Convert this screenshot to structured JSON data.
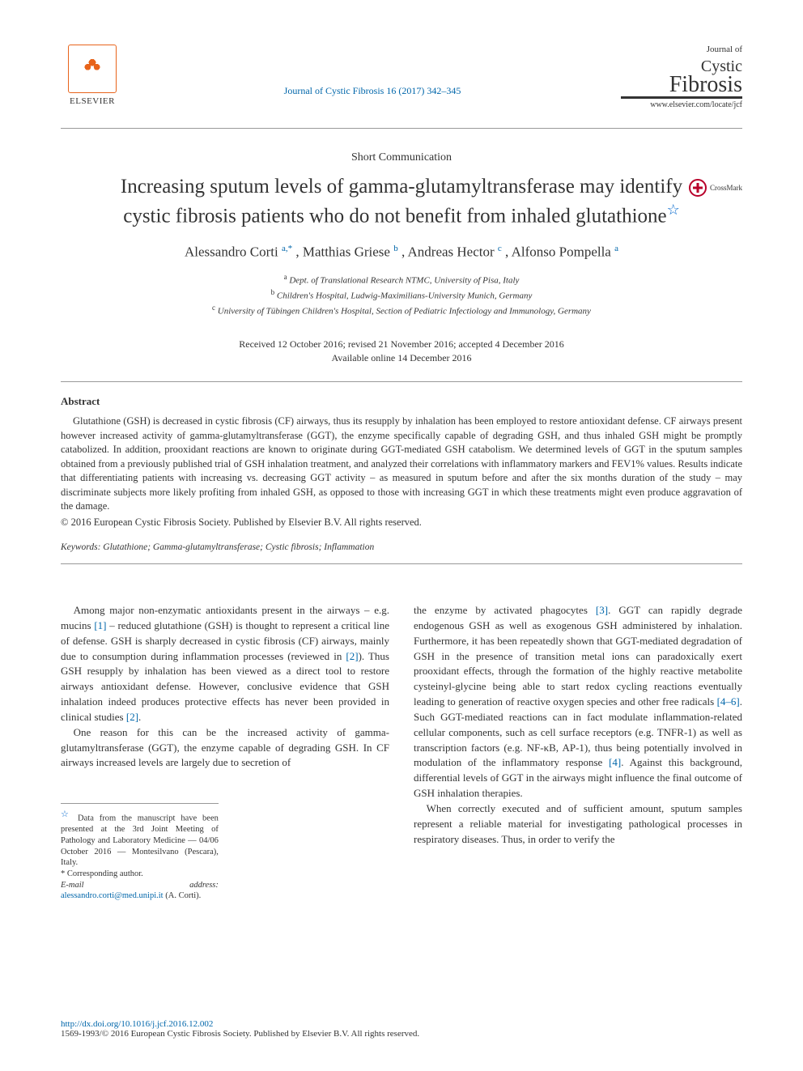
{
  "publisher": {
    "name": "ELSEVIER",
    "logo_color": "#e8641b"
  },
  "journal": {
    "reference": "Journal of Cystic Fibrosis 16 (2017) 342–345",
    "reference_color": "#0066aa",
    "logo_prefix": "Journal of",
    "logo_word1": "Cystic",
    "logo_word2": "Fibrosis",
    "url": "www.elsevier.com/locate/jcf"
  },
  "article": {
    "type": "Short Communication",
    "title": "Increasing sputum levels of gamma-glutamyltransferase may identify cystic fibrosis patients who do not benefit from inhaled glutathione",
    "title_fontsize": 25,
    "star_color": "#0066cc",
    "crossmark_label": "CrossMark",
    "crossmark_color": "#b8002a"
  },
  "authors": {
    "text": "Alessandro Corti",
    "a1_sup": "a,*",
    "a2": ", Matthias Griese",
    "a2_sup": "b",
    "a3": ", Andreas Hector",
    "a3_sup": "c",
    "a4": ", Alfonso Pompella",
    "a4_sup": "a"
  },
  "affiliations": [
    {
      "sup": "a",
      "text": "Dept. of Translational Research NTMC, University of Pisa, Italy"
    },
    {
      "sup": "b",
      "text": "Children's Hospital, Ludwig-Maximilians-University Munich, Germany"
    },
    {
      "sup": "c",
      "text": "University of Tübingen Children's Hospital, Section of Pediatric Infectiology and Immunology, Germany"
    }
  ],
  "dates": {
    "line1": "Received 12 October 2016; revised 21 November 2016; accepted 4 December 2016",
    "line2": "Available online 14 December 2016"
  },
  "abstract": {
    "heading": "Abstract",
    "text": "Glutathione (GSH) is decreased in cystic fibrosis (CF) airways, thus its resupply by inhalation has been employed to restore antioxidant defense. CF airways present however increased activity of gamma-glutamyltransferase (GGT), the enzyme specifically capable of degrading GSH, and thus inhaled GSH might be promptly catabolized. In addition, prooxidant reactions are known to originate during GGT-mediated GSH catabolism. We determined levels of GGT in the sputum samples obtained from a previously published trial of GSH inhalation treatment, and analyzed their correlations with inflammatory markers and FEV1% values. Results indicate that differentiating patients with increasing vs. decreasing GGT activity – as measured in sputum before and after the six months duration of the study – may discriminate subjects more likely profiting from inhaled GSH, as opposed to those with increasing GGT in which these treatments might even produce aggravation of the damage.",
    "copyright": "© 2016 European Cystic Fibrosis Society. Published by Elsevier B.V. All rights reserved."
  },
  "keywords": {
    "label": "Keywords:",
    "text": " Glutathione; Gamma-glutamyltransferase; Cystic fibrosis; Inflammation"
  },
  "body": {
    "col1_p1_a": "Among major non-enzymatic antioxidants present in the airways – e.g. mucins ",
    "col1_p1_ref1": "[1]",
    "col1_p1_b": " – reduced glutathione (GSH) is thought to represent a critical line of defense. GSH is sharply decreased in cystic fibrosis (CF) airways, mainly due to consumption during inflammation processes (reviewed in ",
    "col1_p1_ref2": "[2]",
    "col1_p1_c": "). Thus GSH resupply by inhalation has been viewed as a direct tool to restore airways antioxidant defense. However, conclusive evidence that GSH inhalation indeed produces protective effects has never been provided in clinical studies ",
    "col1_p1_ref3": "[2]",
    "col1_p1_d": ".",
    "col1_p2": "One reason for this can be the increased activity of gamma-glutamyltransferase (GGT), the enzyme capable of degrading GSH. In CF airways increased levels are largely due to secretion of",
    "col2_p1_a": "the enzyme by activated phagocytes ",
    "col2_p1_ref1": "[3]",
    "col2_p1_b": ". GGT can rapidly degrade endogenous GSH as well as exogenous GSH administered by inhalation. Furthermore, it has been repeatedly shown that GGT-mediated degradation of GSH in the presence of transition metal ions can paradoxically exert prooxidant effects, through the formation of the highly reactive metabolite cysteinyl-glycine being able to start redox cycling reactions eventually leading to generation of reactive oxygen species and other free radicals ",
    "col2_p1_ref2": "[4–6]",
    "col2_p1_c": ". Such GGT-mediated reactions can in fact modulate inflammation-related cellular components, such as cell surface receptors (e.g. TNFR-1) as well as transcription factors (e.g. NF-κB, AP-1), thus being potentially involved in modulation of the inflammatory response ",
    "col2_p1_ref3": "[4]",
    "col2_p1_d": ". Against this background, differential levels of GGT in the airways might influence the final outcome of GSH inhalation therapies.",
    "col2_p2": "When correctly executed and of sufficient amount, sputum samples represent a reliable material for investigating pathological processes in respiratory diseases. Thus, in order to verify the"
  },
  "footnotes": {
    "conf": "Data from the manuscript have been presented at the 3rd Joint Meeting of Pathology and Laboratory Medicine — 04/06 October 2016 — Montesilvano (Pescara), Italy.",
    "corr_symbol": "*",
    "corr_label": " Corresponding author.",
    "email_label": "E-mail address: ",
    "email": "alessandro.corti@med.unipi.it",
    "email_name": " (A. Corti)."
  },
  "footer": {
    "doi": "http://dx.doi.org/10.1016/j.jcf.2016.12.002",
    "copyright": "1569-1993/© 2016 European Cystic Fibrosis Society. Published by Elsevier B.V. All rights reserved."
  },
  "colors": {
    "link": "#0066aa",
    "text": "#333333",
    "rule": "#999999"
  }
}
